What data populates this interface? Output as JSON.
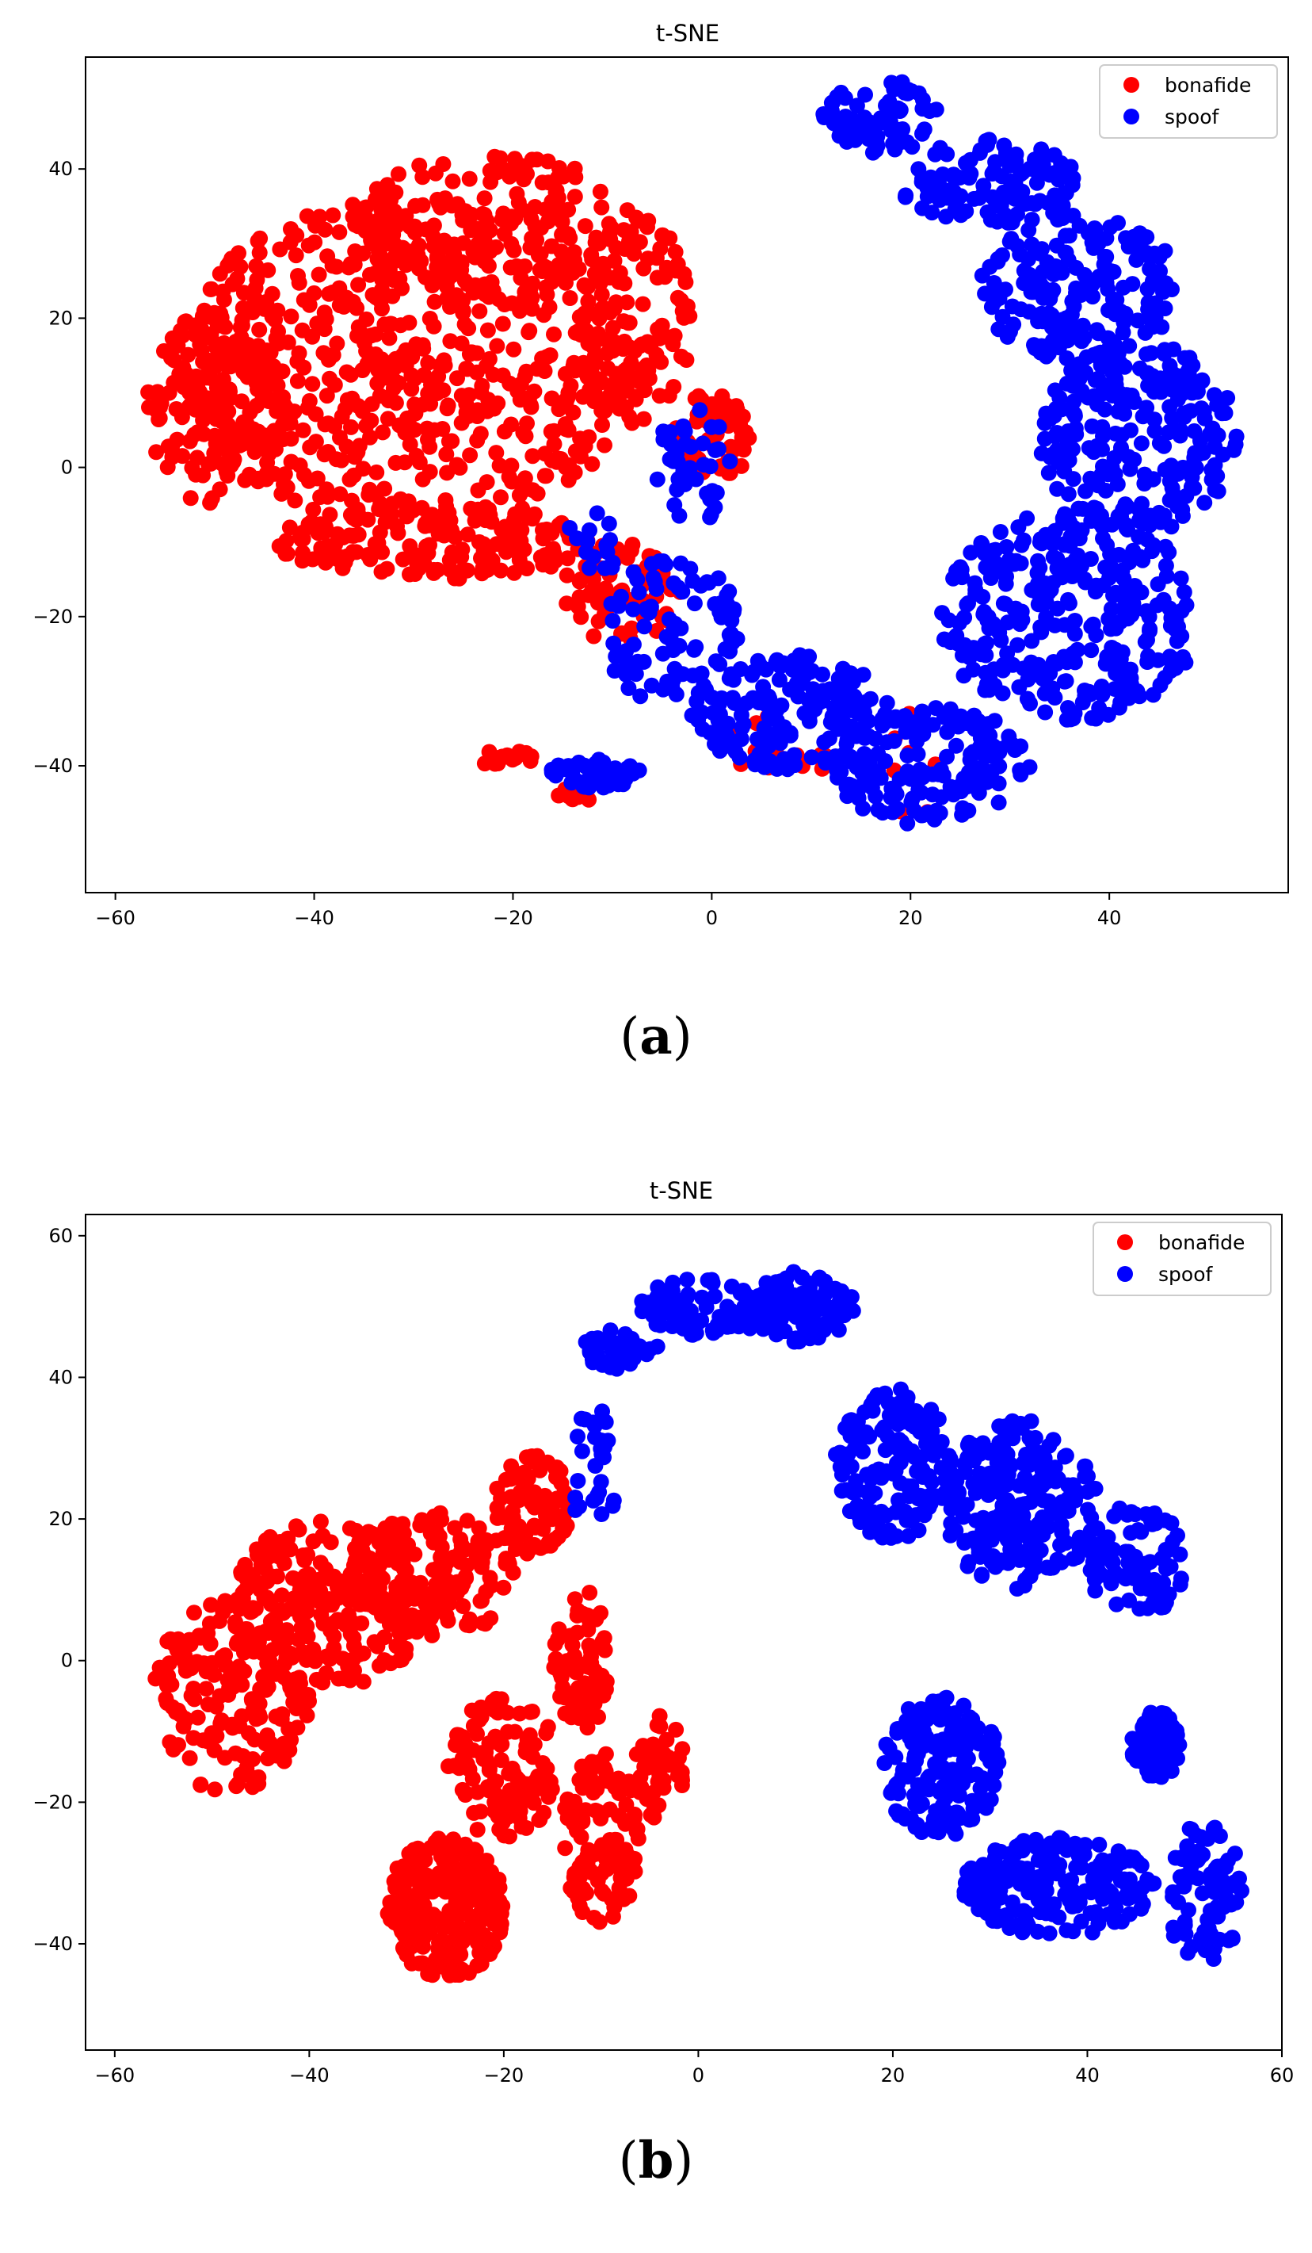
{
  "colors": {
    "bonafide": "#ff0000",
    "spoof": "#0000ff"
  },
  "captions": {
    "a": "a",
    "b": "b"
  },
  "chart_data": [
    {
      "type": "scatter",
      "title": "t-SNE",
      "xlim": [
        -63,
        58
      ],
      "ylim": [
        -57,
        55
      ],
      "xticks": [
        -60,
        -40,
        -20,
        0,
        20,
        40
      ],
      "yticks": [
        -40,
        -20,
        0,
        20,
        40
      ],
      "legend": "top-right",
      "grid": false,
      "series": [
        {
          "name": "bonafide",
          "color": "#ff0000",
          "clusters": [
            {
              "cx": -30,
              "cy": 14,
              "rx": 24,
              "ry": 22,
              "n": 620
            },
            {
              "cx": -22,
              "cy": 32,
              "rx": 14,
              "ry": 10,
              "n": 160
            },
            {
              "cx": -50,
              "cy": 8,
              "rx": 7,
              "ry": 13,
              "n": 150
            },
            {
              "cx": -28,
              "cy": -10,
              "rx": 16,
              "ry": 5,
              "n": 160
            },
            {
              "cx": -8,
              "cy": 20,
              "rx": 6,
              "ry": 14,
              "n": 110
            },
            {
              "cx": 0,
              "cy": 4,
              "rx": 4,
              "ry": 6,
              "n": 60
            },
            {
              "cx": -9,
              "cy": -17,
              "rx": 6,
              "ry": 7,
              "n": 70
            },
            {
              "cx": -21,
              "cy": -39,
              "rx": 3,
              "ry": 1.2,
              "n": 22
            },
            {
              "cx": -14,
              "cy": -44,
              "rx": 2,
              "ry": 1,
              "n": 8
            },
            {
              "cx": 7,
              "cy": -38,
              "rx": 5,
              "ry": 5,
              "n": 14
            },
            {
              "cx": 18,
              "cy": -40,
              "rx": 6,
              "ry": 8,
              "n": 10
            }
          ]
        },
        {
          "name": "spoof",
          "color": "#0000ff",
          "clusters": [
            {
              "cx": 17,
              "cy": 47,
              "rx": 6,
              "ry": 5,
              "n": 70
            },
            {
              "cx": 28,
              "cy": 38,
              "rx": 9,
              "ry": 6,
              "n": 110
            },
            {
              "cx": 37,
              "cy": 24,
              "rx": 10,
              "ry": 10,
              "n": 180
            },
            {
              "cx": 43,
              "cy": 4,
              "rx": 10,
              "ry": 13,
              "n": 240
            },
            {
              "cx": 36,
              "cy": -20,
              "rx": 13,
              "ry": 14,
              "n": 300
            },
            {
              "cx": 22,
              "cy": -40,
              "rx": 10,
              "ry": 8,
              "n": 160
            },
            {
              "cx": 8,
              "cy": -33,
              "rx": 10,
              "ry": 8,
              "n": 160
            },
            {
              "cx": -4,
              "cy": -22,
              "rx": 7,
              "ry": 10,
              "n": 90
            },
            {
              "cx": -12,
              "cy": -41,
              "rx": 5,
              "ry": 2,
              "n": 45
            },
            {
              "cx": -2,
              "cy": 0,
              "rx": 4,
              "ry": 8,
              "n": 40
            },
            {
              "cx": -12,
              "cy": -10,
              "rx": 3,
              "ry": 5,
              "n": 15
            }
          ]
        }
      ]
    },
    {
      "type": "scatter",
      "title": "t-SNE",
      "xlim": [
        -63,
        60
      ],
      "ylim": [
        -55,
        63
      ],
      "xticks": [
        -60,
        -40,
        -20,
        0,
        20,
        40,
        60
      ],
      "yticks": [
        -40,
        -20,
        0,
        20,
        40,
        60
      ],
      "legend": "top-right",
      "grid": false,
      "series": [
        {
          "name": "bonafide",
          "color": "#ff0000",
          "clusters": [
            {
              "cx": -48,
              "cy": -5,
              "rx": 8,
              "ry": 14,
              "n": 170
            },
            {
              "cx": -38,
              "cy": 8,
              "rx": 10,
              "ry": 12,
              "n": 230
            },
            {
              "cx": -27,
              "cy": 12,
              "rx": 8,
              "ry": 9,
              "n": 150
            },
            {
              "cx": -17,
              "cy": 22,
              "rx": 4,
              "ry": 7,
              "n": 80
            },
            {
              "cx": -26,
              "cy": -35,
              "rx": 6,
              "ry": 10,
              "n": 260
            },
            {
              "cx": -20,
              "cy": -15,
              "rx": 6,
              "ry": 10,
              "n": 120
            },
            {
              "cx": -10,
              "cy": -25,
              "rx": 4,
              "ry": 12,
              "n": 110
            },
            {
              "cx": -4,
              "cy": -15,
              "rx": 2.5,
              "ry": 8,
              "n": 50
            },
            {
              "cx": -12,
              "cy": 0,
              "rx": 3,
              "ry": 10,
              "n": 70
            }
          ]
        },
        {
          "name": "spoof",
          "color": "#0000ff",
          "clusters": [
            {
              "cx": 0,
              "cy": 50,
              "rx": 6,
              "ry": 4,
              "n": 90
            },
            {
              "cx": 10,
              "cy": 50,
              "rx": 6,
              "ry": 5,
              "n": 120
            },
            {
              "cx": -8,
              "cy": 44,
              "rx": 4,
              "ry": 3,
              "n": 45
            },
            {
              "cx": -11,
              "cy": 32,
              "rx": 2,
              "ry": 5,
              "n": 18
            },
            {
              "cx": -11,
              "cy": 23,
              "rx": 3,
              "ry": 3,
              "n": 12
            },
            {
              "cx": 20,
              "cy": 28,
              "rx": 6,
              "ry": 11,
              "n": 160
            },
            {
              "cx": 33,
              "cy": 22,
              "rx": 8,
              "ry": 12,
              "n": 230
            },
            {
              "cx": 45,
              "cy": 14,
              "rx": 5,
              "ry": 8,
              "n": 80
            },
            {
              "cx": 25,
              "cy": -15,
              "rx": 6,
              "ry": 10,
              "n": 170
            },
            {
              "cx": 37,
              "cy": -32,
              "rx": 10,
              "ry": 7,
              "n": 190
            },
            {
              "cx": 47,
              "cy": -12,
              "rx": 2.5,
              "ry": 5,
              "n": 70
            },
            {
              "cx": 52,
              "cy": -33,
              "rx": 4,
              "ry": 10,
              "n": 80
            }
          ]
        }
      ]
    }
  ]
}
